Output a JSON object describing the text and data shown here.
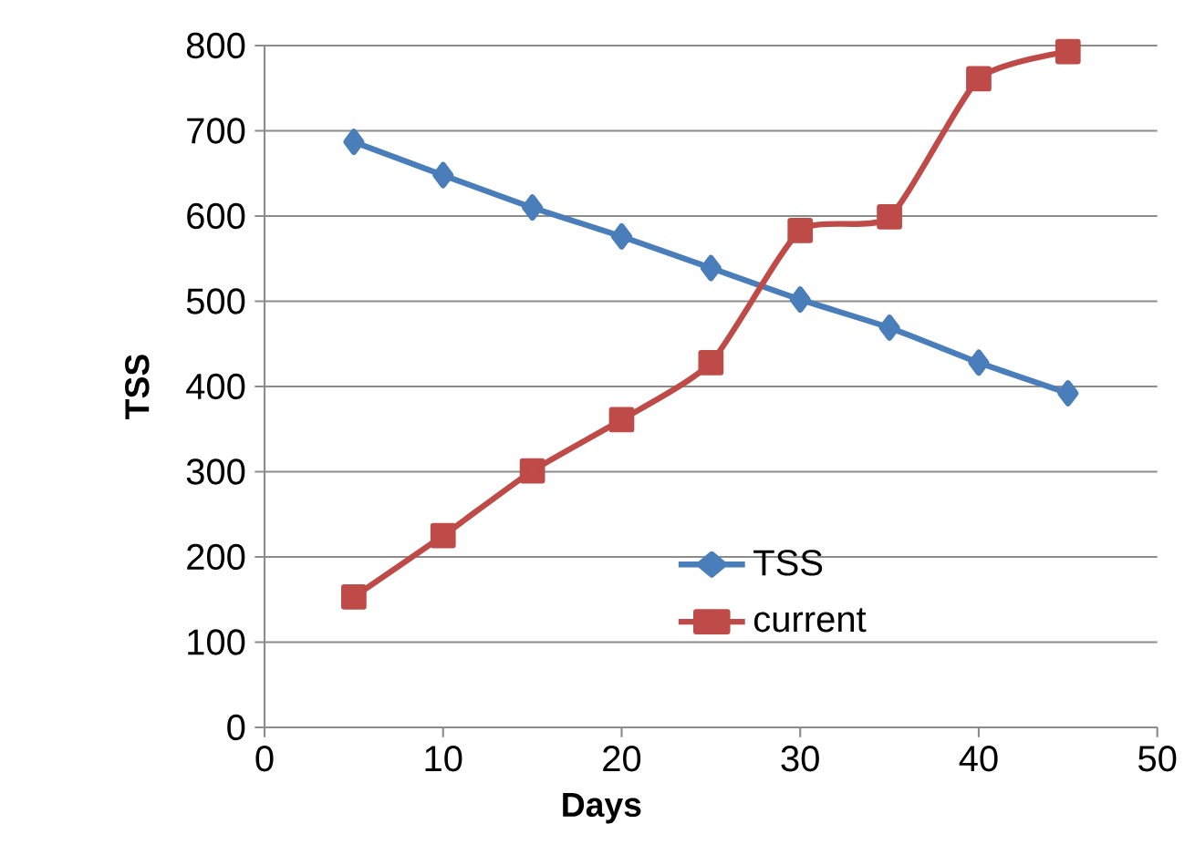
{
  "chart_data": {
    "type": "line",
    "xlabel": "Days",
    "ylabel": "TSS",
    "x": [
      5,
      10,
      15,
      20,
      25,
      30,
      35,
      40,
      45
    ],
    "series": [
      {
        "name": "TSS",
        "color": "#4a7ebb",
        "marker": "diamond",
        "values": [
          687,
          648,
          610,
          576,
          539,
          502,
          469,
          428,
          392
        ]
      },
      {
        "name": "current",
        "color": "#be4b48",
        "marker": "square",
        "values": [
          153,
          225,
          301,
          361,
          428,
          583,
          599,
          761,
          793
        ]
      }
    ],
    "xlim": [
      0,
      50
    ],
    "xticks": [
      0,
      10,
      20,
      30,
      40,
      50
    ],
    "ylim": [
      0,
      800
    ],
    "yticks": [
      0,
      100,
      200,
      300,
      400,
      500,
      600,
      700,
      800
    ],
    "grid": "y",
    "legend": "bottom",
    "line_style": "solid"
  }
}
